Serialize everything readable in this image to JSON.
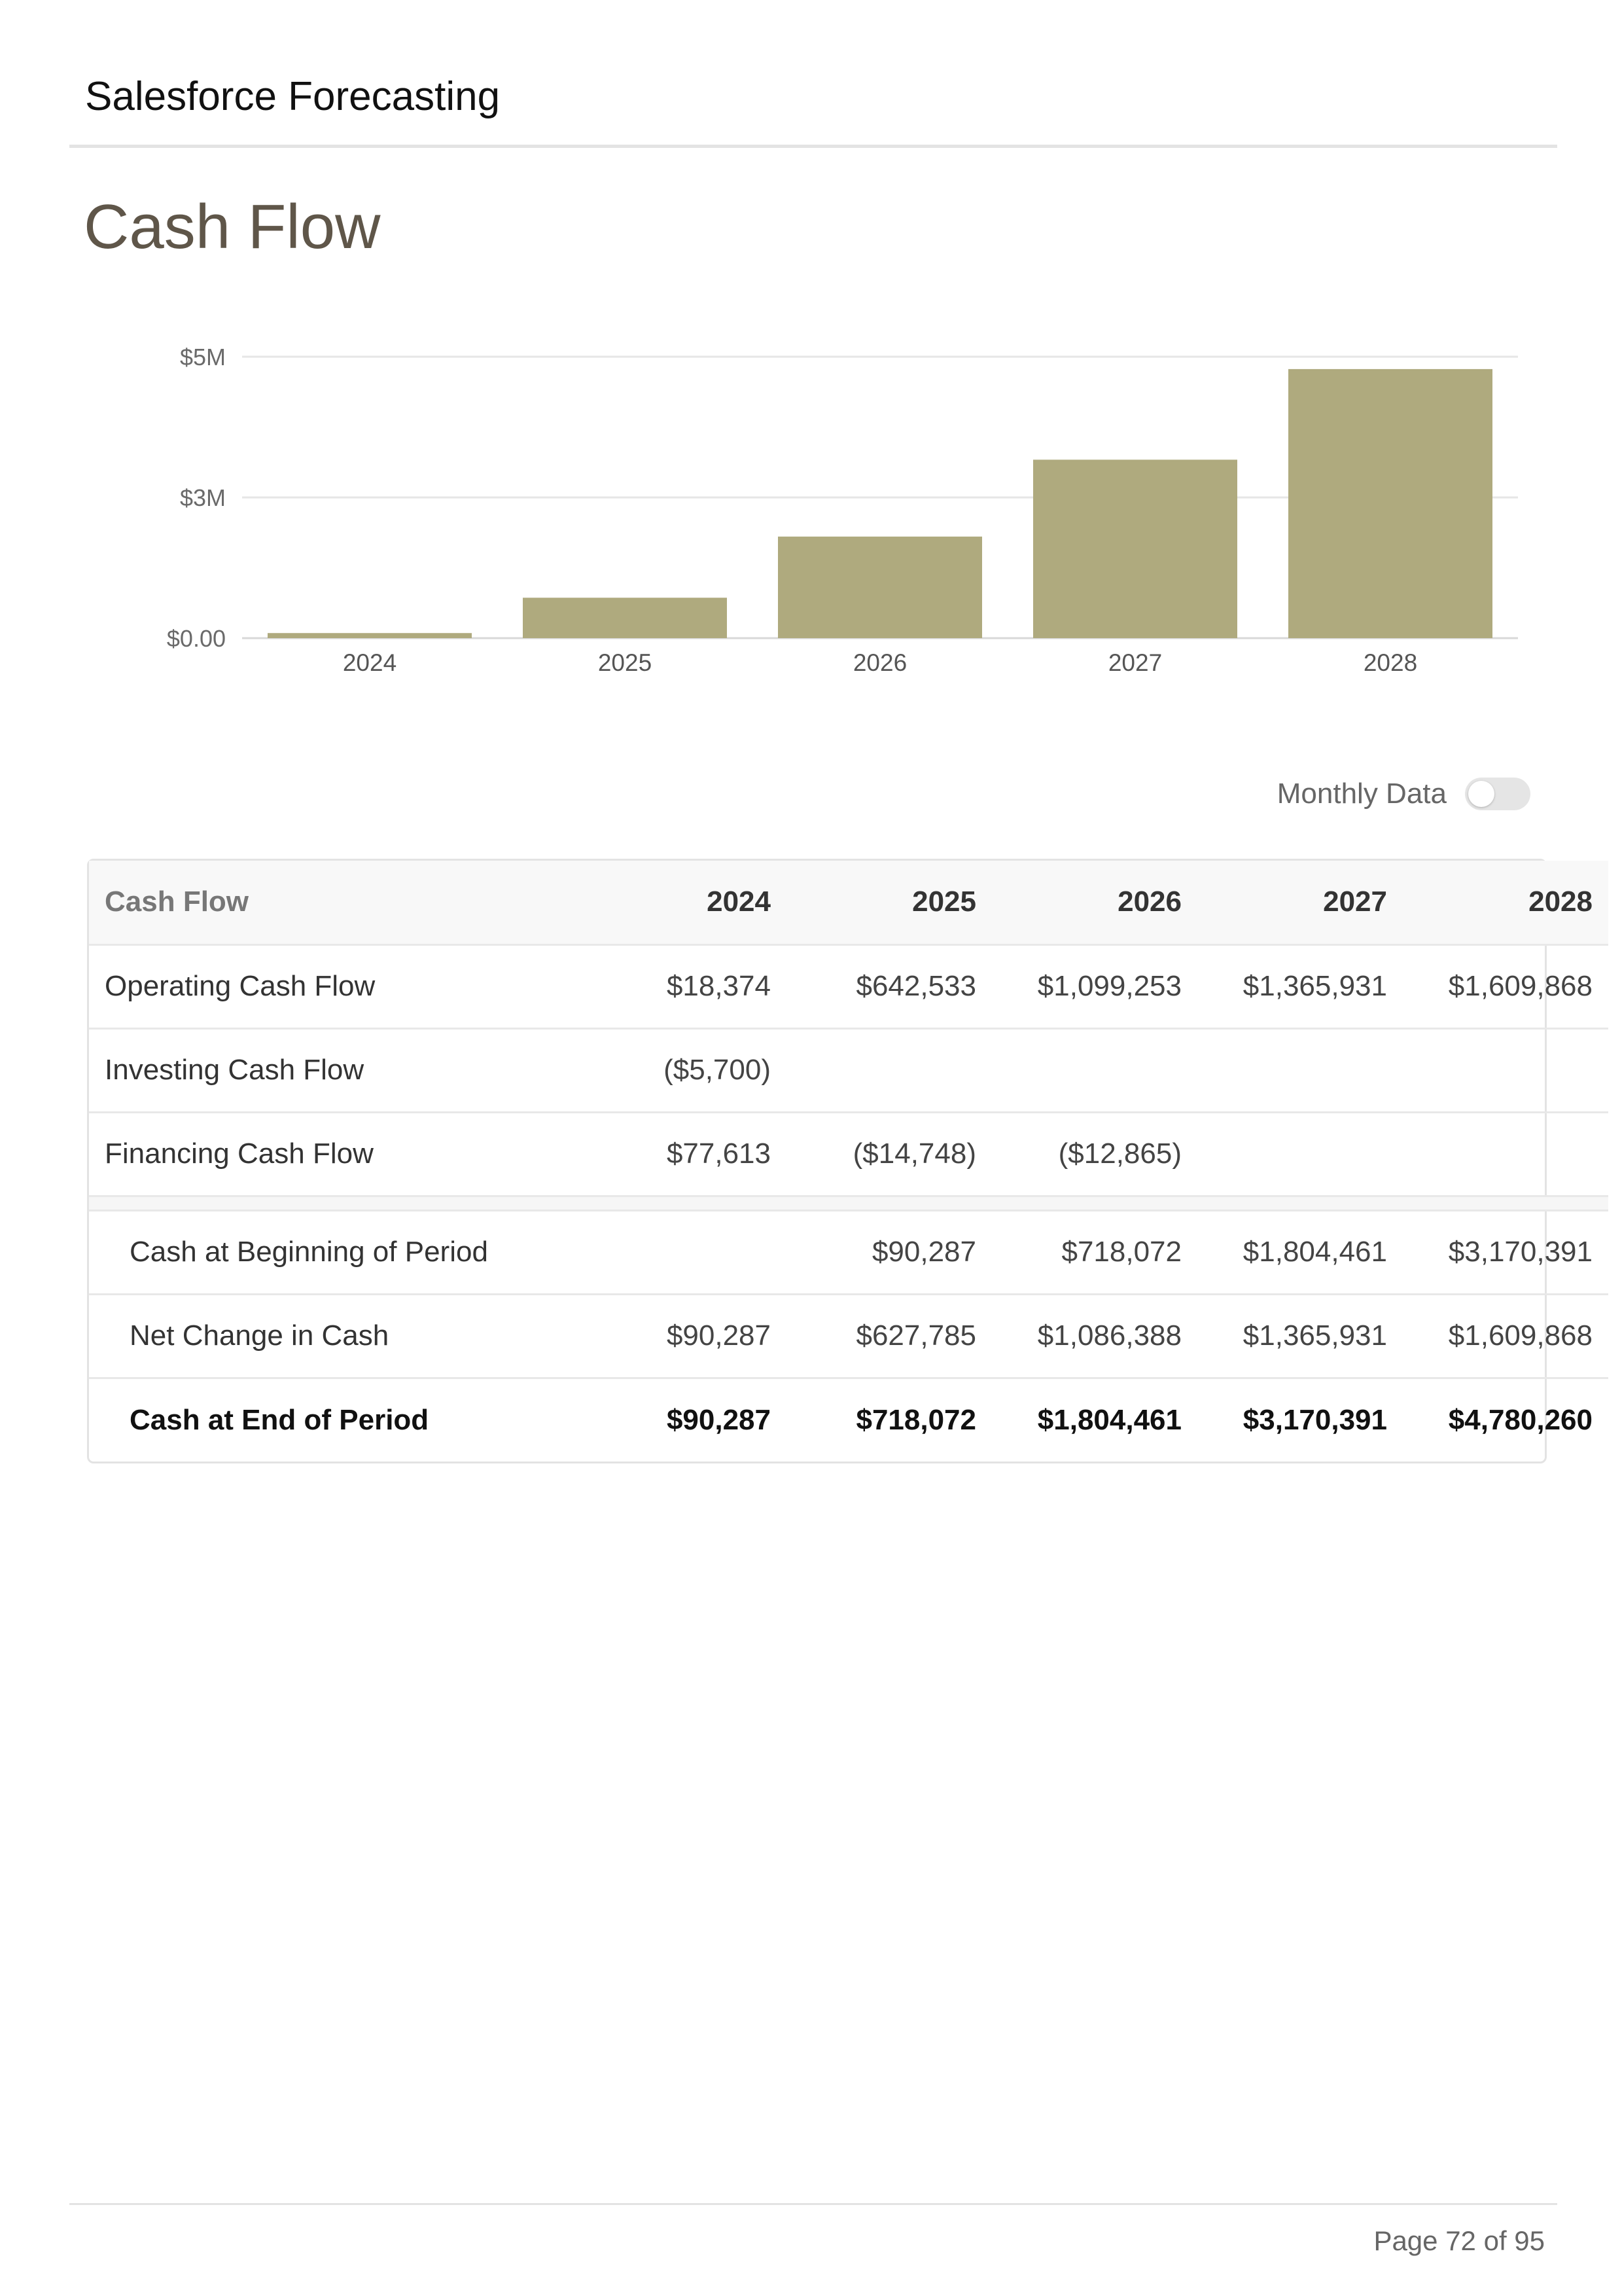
{
  "header": {
    "title": "Salesforce Forecasting"
  },
  "section": {
    "title": "Cash Flow"
  },
  "chart_data": {
    "type": "bar",
    "title": "",
    "xlabel": "",
    "ylabel": "",
    "categories": [
      "2024",
      "2025",
      "2026",
      "2027",
      "2028"
    ],
    "values": [
      90287,
      718072,
      1804461,
      3170391,
      4780260
    ],
    "ylim": [
      0,
      5000000
    ],
    "yticks": [
      {
        "value": 0,
        "label": "$0.00"
      },
      {
        "value": 2500000,
        "label": "$3M"
      },
      {
        "value": 5000000,
        "label": "$5M"
      }
    ],
    "bar_color": "#afaa7e",
    "grid": true,
    "legend": "none"
  },
  "toggle": {
    "label": "Monthly Data",
    "checked": false
  },
  "table": {
    "header": [
      "Cash Flow",
      "2024",
      "2025",
      "2026",
      "2027",
      "2028"
    ],
    "rows": [
      [
        "Operating Cash Flow",
        "$18,374",
        "$642,533",
        "$1,099,253",
        "$1,365,931",
        "$1,609,868"
      ],
      [
        "Investing Cash Flow",
        "($5,700)",
        "",
        "",
        "",
        ""
      ],
      [
        "Financing Cash Flow",
        "$77,613",
        "($14,748)",
        "($12,865)",
        "",
        ""
      ]
    ],
    "summary": [
      [
        "Cash at Beginning of Period",
        "",
        "$90,287",
        "$718,072",
        "$1,804,461",
        "$3,170,391"
      ],
      [
        "Net Change in Cash",
        "$90,287",
        "$627,785",
        "$1,086,388",
        "$1,365,931",
        "$1,609,868"
      ]
    ],
    "total": [
      "Cash at End of Period",
      "$90,287",
      "$718,072",
      "$1,804,461",
      "$3,170,391",
      "$4,780,260"
    ]
  },
  "footer": {
    "page": "Page 72 of 95"
  }
}
